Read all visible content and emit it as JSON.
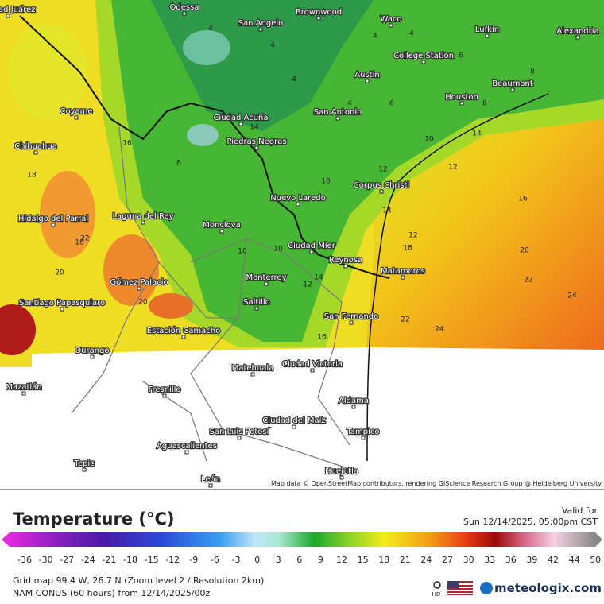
{
  "map": {
    "cities": [
      "Ciudad Juárez",
      "Odessa",
      "San Angelo",
      "Brownwood",
      "Waco",
      "Lufkin",
      "Alexandria",
      "College Station",
      "Austin",
      "Beaumont",
      "Houston",
      "Ciudad Acuña",
      "San Antonio",
      "Piedras Negras",
      "Coyame",
      "Chihuahua",
      "Corpus Christi",
      "Nuevo Laredo",
      "Hidalgo del Parral",
      "Laguna del Rey",
      "Monclova",
      "Ciudad Mier",
      "Reynosa",
      "Matamoros",
      "Monterrey",
      "Gómez Palacio",
      "Saltillo",
      "Santiago Papasquiaro",
      "San Fernando",
      "Estación Camacho",
      "Durango",
      "Matehuala",
      "Ciudad Victoria",
      "Mazatlán",
      "Fresnillo",
      "Aldama",
      "Ciudad del Maíz",
      "San Luis Potosí",
      "Tampico",
      "Aguascalientes",
      "Tepic",
      "Huejutla",
      "León"
    ],
    "contour_labels": [
      4,
      4,
      4,
      4,
      4,
      4,
      6,
      6,
      8,
      8,
      10,
      10,
      10,
      12,
      12,
      12,
      14,
      14,
      14,
      16,
      16,
      16,
      18,
      18,
      18,
      20,
      20,
      20,
      22,
      22,
      22,
      24,
      24,
      12,
      14,
      16,
      10,
      8
    ],
    "attribution": "Map data © OpenStreetMap contributors, rendering GIScience Research Group @ Heidelberg University"
  },
  "legend": {
    "title": "Temperature (°C)",
    "valid_label": "Valid for",
    "valid_time": "Sun 12/14/2025, 05:00pm CST",
    "scale": [
      -36,
      -30,
      -27,
      -24,
      -21,
      -18,
      -15,
      -12,
      -9,
      -6,
      -3,
      0,
      3,
      6,
      9,
      12,
      15,
      18,
      21,
      24,
      27,
      30,
      33,
      36,
      39,
      42,
      44,
      50
    ]
  },
  "footer": {
    "grid": "Grid map 99.4 W, 26.7 N (Zoom level 2 / Resolution 2km)",
    "model": "NAM CONUS (60 hours) from 12/14/2025/00z",
    "hd": "HD",
    "brand": "meteologix.com"
  }
}
